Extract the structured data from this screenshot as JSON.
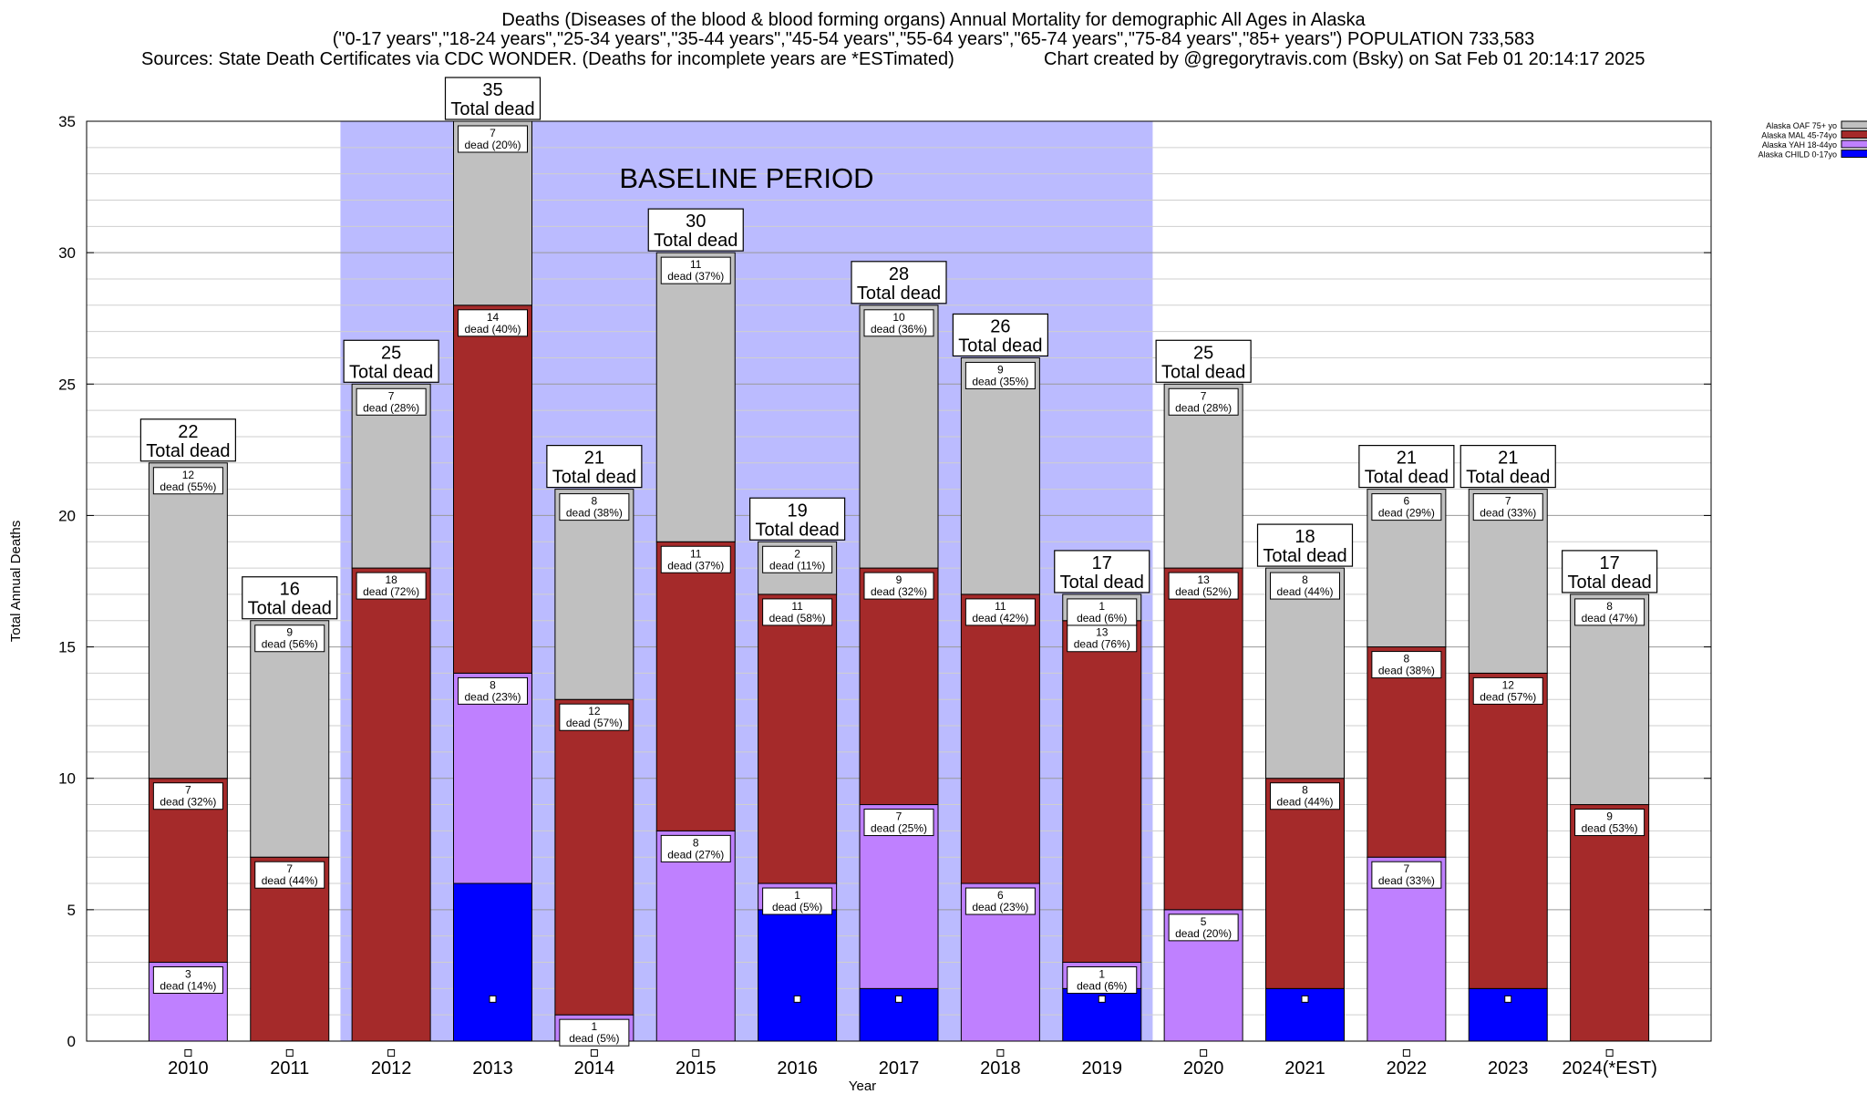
{
  "header": {
    "title": "Deaths (Diseases of the blood & blood forming organs) Annual Mortality for demographic All Ages in Alaska",
    "subtitle": "(\"0-17 years\",\"18-24 years\",\"25-34 years\",\"35-44 years\",\"45-54 years\",\"55-64 years\",\"65-74 years\",\"75-84 years\",\"85+ years\") POPULATION 733,583",
    "sources": "Sources: State Death Certificates via CDC WONDER. (Deaths for incomplete years are *ESTimated)",
    "credit": "Chart created by @gregorytravis.com (Bsky) on Sat Feb 01 20:14:17 2025"
  },
  "chart_data": {
    "type": "bar",
    "stacked": true,
    "xlabel": "Year",
    "ylabel": "Total Annual Deaths",
    "ylim": [
      0,
      35
    ],
    "yticks": [
      0,
      5,
      10,
      15,
      20,
      25,
      30,
      35
    ],
    "grid": true,
    "legend_position": "top-right",
    "categories": [
      "2010",
      "2011",
      "2012",
      "2013",
      "2014",
      "2015",
      "2016",
      "2017",
      "2018",
      "2019",
      "2020",
      "2021",
      "2022",
      "2023",
      "2024(*EST)"
    ],
    "series": [
      {
        "name": "Alaska CHILD 0-17yo",
        "color": "#0000ff",
        "values": [
          0,
          0,
          0,
          6,
          0,
          0,
          5,
          2,
          0,
          2,
          0,
          2,
          0,
          2,
          0
        ]
      },
      {
        "name": "Alaska YAH 18-44yo",
        "color": "#bf80ff",
        "values": [
          3,
          0,
          0,
          8,
          1,
          8,
          1,
          7,
          6,
          1,
          5,
          0,
          7,
          0,
          0
        ]
      },
      {
        "name": "Alaska MAL 45-74yo",
        "color": "#a52a2a",
        "values": [
          7,
          7,
          18,
          14,
          12,
          11,
          11,
          9,
          11,
          13,
          13,
          8,
          8,
          12,
          9
        ]
      },
      {
        "name": "Alaska OAF 75+ yo",
        "color": "#c0c0c0",
        "values": [
          12,
          9,
          7,
          7,
          8,
          11,
          2,
          10,
          9,
          1,
          7,
          8,
          6,
          7,
          8
        ]
      }
    ],
    "segment_labels": [
      [
        null,
        null,
        null,
        null,
        null,
        null,
        null,
        null,
        null,
        null,
        null,
        null,
        null,
        null,
        null
      ],
      [
        "dead (14%)",
        null,
        null,
        "dead (23%)",
        "dead (5%)",
        "dead (27%)",
        "dead (5%)",
        "dead (25%)",
        "dead (23%)",
        "dead (6%)",
        "dead (20%)",
        null,
        "dead (33%)",
        null,
        null
      ],
      [
        "dead (32%)",
        "dead (44%)",
        "dead (72%)",
        "dead (40%)",
        "dead (57%)",
        "dead (37%)",
        "dead (58%)",
        "dead (32%)",
        "dead (42%)",
        "dead (76%)",
        "dead (52%)",
        "dead (44%)",
        "dead (38%)",
        "dead (57%)",
        "dead (53%)"
      ],
      [
        "dead (55%)",
        "dead (56%)",
        "dead (28%)",
        "dead (20%)",
        "dead (38%)",
        "dead (37%)",
        "dead (11%)",
        "dead (36%)",
        "dead (35%)",
        "dead (6%)",
        "dead (28%)",
        "dead (44%)",
        "dead (29%)",
        "dead (33%)",
        "dead (47%)"
      ]
    ],
    "totals": [
      22,
      16,
      25,
      35,
      21,
      30,
      19,
      28,
      26,
      17,
      25,
      18,
      21,
      21,
      17
    ],
    "total_suffix": "Total dead",
    "baseline": {
      "label": "BASELINE PERIOD",
      "from": "2012",
      "to": "2019",
      "color": "#bbbbff"
    }
  }
}
